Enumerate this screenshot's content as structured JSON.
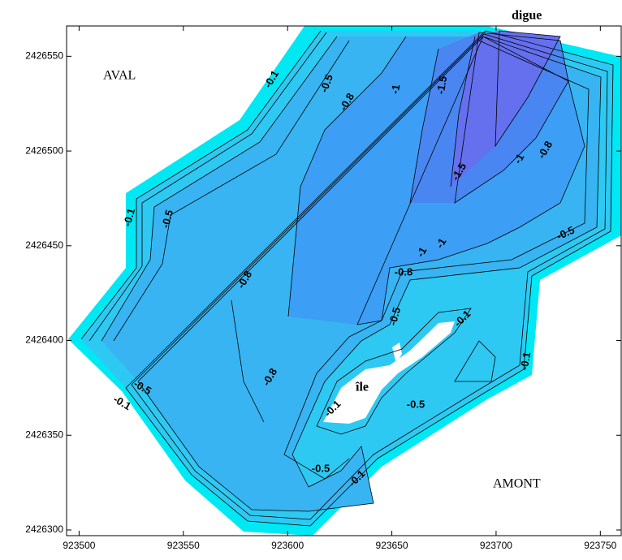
{
  "chart_data": {
    "type": "contour",
    "annotations": [
      "AVAL",
      "AMONT",
      "île",
      "digue"
    ],
    "contour_labels": [
      -0.1,
      -0.5,
      -0.8,
      -1,
      -1.5,
      -1.5,
      -0.8,
      -1,
      -0.5,
      -0.1,
      -0.5,
      -0.8,
      -1,
      -1,
      -0.8,
      -0.5,
      -0.1,
      -0.1,
      -0.8,
      -0.5,
      -0.1,
      -0.1,
      -0.5,
      -0.5,
      -0.1
    ],
    "xlim": [
      923494,
      923760
    ],
    "xticks": [
      923500,
      923550,
      923600,
      923650,
      923700,
      923750
    ],
    "ylim": [
      2426297,
      2426566
    ],
    "yticks": [
      2426300,
      2426350,
      2426400,
      2426450,
      2426500,
      2426550
    ]
  }
}
